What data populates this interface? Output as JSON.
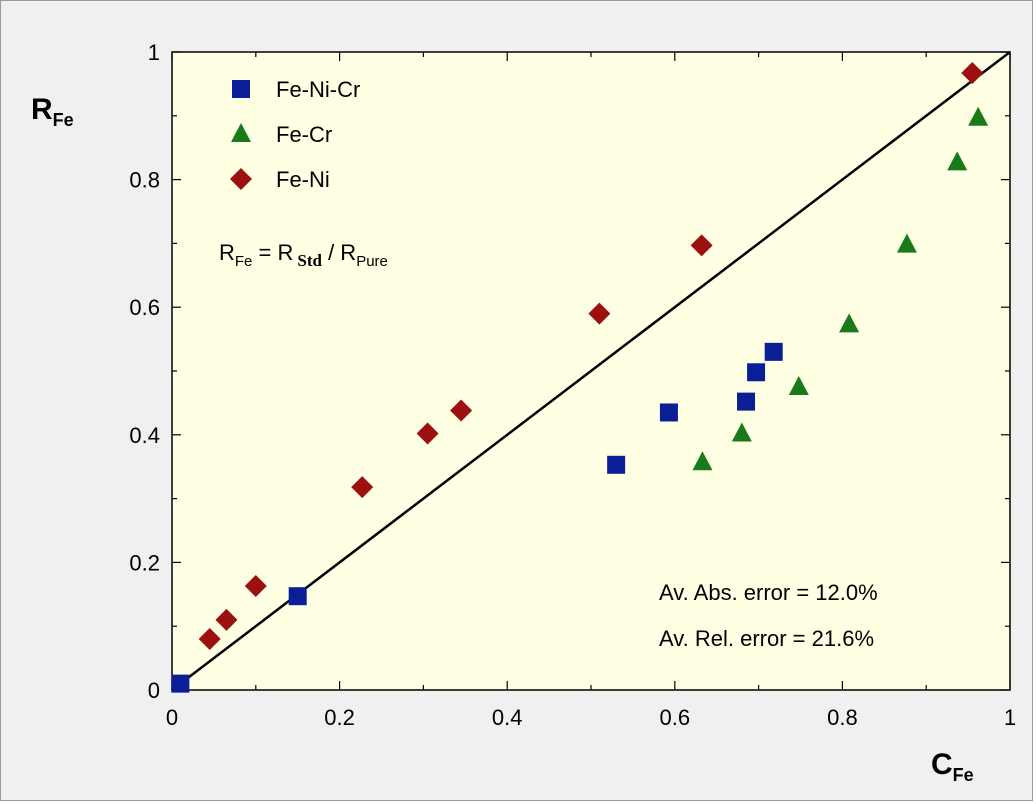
{
  "chart_data": {
    "type": "scatter",
    "xlim": [
      0,
      1
    ],
    "ylim": [
      0,
      1
    ],
    "x_ticks": [
      "0",
      "0.2",
      "0.4",
      "0.6",
      "0.8",
      "1"
    ],
    "y_ticks": [
      "0",
      "0.2",
      "0.4",
      "0.6",
      "0.8",
      "1"
    ],
    "xlabel": {
      "main": "C",
      "sub": "Fe"
    },
    "ylabel": {
      "main": "R",
      "sub": "Fe"
    },
    "grid": false,
    "legend_position": "top-left",
    "reference_line": {
      "from": [
        0,
        0
      ],
      "to": [
        1,
        1
      ],
      "color": "#000000"
    },
    "formula": {
      "lhs": "R",
      "lhs_sub": "Fe",
      "eq": " = ",
      "num": "R",
      "num_sub": "Std",
      "slash": " / ",
      "den": "R",
      "den_sub": "Pure"
    },
    "annotations": [
      "Av. Abs. error = 12.0%",
      "Av. Rel. error = 21.6%"
    ],
    "background_color": "#ffffe3",
    "series": [
      {
        "name": "Fe-Ni-Cr",
        "marker": "square",
        "color": "#0a1f96",
        "points": [
          [
            0.01,
            0.01
          ],
          [
            0.15,
            0.147
          ],
          [
            0.53,
            0.353
          ],
          [
            0.593,
            0.435
          ],
          [
            0.685,
            0.452
          ],
          [
            0.697,
            0.498
          ],
          [
            0.718,
            0.53
          ]
        ]
      },
      {
        "name": "Fe-Cr",
        "marker": "triangle",
        "color": "#1a7a1a",
        "points": [
          [
            0.633,
            0.357
          ],
          [
            0.68,
            0.402
          ],
          [
            0.748,
            0.475
          ],
          [
            0.808,
            0.573
          ],
          [
            0.877,
            0.698
          ],
          [
            0.937,
            0.827
          ],
          [
            0.962,
            0.897
          ]
        ]
      },
      {
        "name": "Fe-Ni",
        "marker": "diamond",
        "color": "#9c1010",
        "points": [
          [
            0.045,
            0.08
          ],
          [
            0.065,
            0.11
          ],
          [
            0.1,
            0.163
          ],
          [
            0.227,
            0.318
          ],
          [
            0.305,
            0.402
          ],
          [
            0.345,
            0.438
          ],
          [
            0.51,
            0.59
          ],
          [
            0.632,
            0.697
          ],
          [
            0.955,
            0.967
          ]
        ]
      }
    ]
  }
}
